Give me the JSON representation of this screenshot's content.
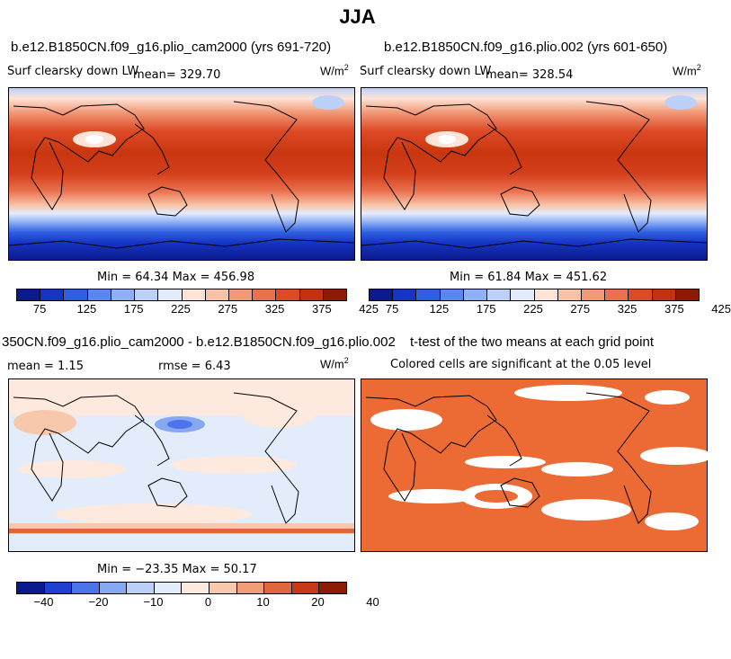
{
  "chart_data": [
    {
      "type": "heatmap",
      "season": "JJA",
      "case": "b.e12.B1850CN.f09_g16.plio_cam2000 (yrs 691-720)",
      "variable": "Surf clearsky down LW",
      "mean_label": "mean= 329.70",
      "units_label": "W/m",
      "units_exp": "2",
      "stats": "Min =  64.34 Max = 456.98",
      "colorbar_ticks": [
        "75",
        "125",
        "175",
        "225",
        "275",
        "325",
        "375",
        "425"
      ]
    },
    {
      "type": "heatmap",
      "season": "JJA",
      "case": "b.e12.B1850CN.f09_g16.plio.002 (yrs 601-650)",
      "variable": "Surf clearsky down LW",
      "mean_label": "mean= 328.54",
      "units_label": "W/m",
      "units_exp": "2",
      "stats": "Min =  61.84 Max = 451.62",
      "colorbar_ticks": [
        "75",
        "125",
        "175",
        "225",
        "275",
        "325",
        "375",
        "425"
      ]
    },
    {
      "type": "heatmap",
      "title": "350CN.f09_g16.plio_cam2000 - b.e12.B1850CN.f09_g16.plio.002",
      "mean_label": "mean =    1.15",
      "rmse_label": "rmse =    6.43",
      "units_label": "W/m",
      "units_exp": "2",
      "stats": "Min = −23.35 Max =  50.17",
      "colorbar_ticks": [
        "−40",
        "−20",
        "−10",
        "0",
        "10",
        "20",
        "40"
      ]
    },
    {
      "type": "heatmap",
      "title": "t-test of the two means at each grid point",
      "subtitle": "Colored cells are significant at the 0.05 level"
    }
  ],
  "page": {
    "title": "JJA"
  },
  "colors": {
    "abs_scale": [
      "#0a1a8c",
      "#1535c4",
      "#2f5fe0",
      "#5a86ef",
      "#8fb0f5",
      "#bdd1f8",
      "#e3ecfb",
      "#fde4d6",
      "#f8c2a6",
      "#f29a78",
      "#ea714e",
      "#dd4a26",
      "#c52f12",
      "#8e1a08"
    ],
    "diff_scale": [
      "#0a1a8c",
      "#1f3fd0",
      "#4c73e8",
      "#86a7f2",
      "#bcd0f7",
      "#e3ecfb",
      "#fde9dd",
      "#f8c8ad",
      "#f09c76",
      "#e0663e",
      "#c83a17",
      "#8e1a08"
    ],
    "signif": "#ec6a33"
  }
}
